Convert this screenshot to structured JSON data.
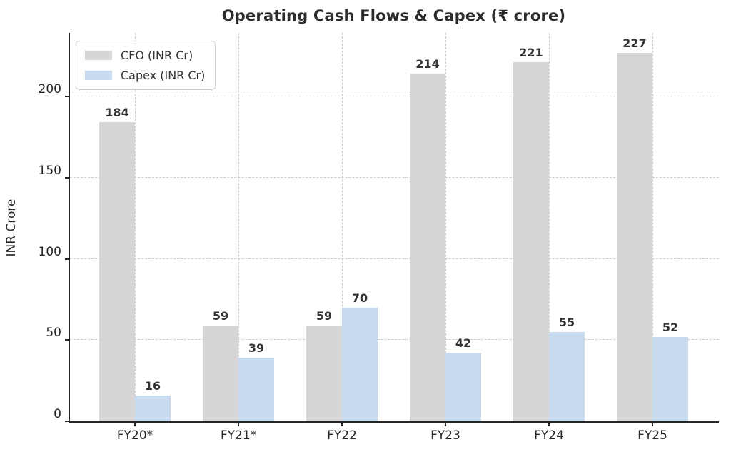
{
  "chart_data": {
    "type": "bar",
    "title": "Operating Cash Flows & Capex (₹ crore)",
    "xlabel": "",
    "ylabel": "INR Crore",
    "categories": [
      "FY20*",
      "FY21*",
      "FY22",
      "FY23",
      "FY24",
      "FY25"
    ],
    "series": [
      {
        "name": "CFO (INR Cr)",
        "color": "#d6d6d6",
        "values": [
          184,
          59,
          59,
          214,
          221,
          227
        ]
      },
      {
        "name": "Capex (INR Cr)",
        "color": "#c7daee",
        "values": [
          16,
          39,
          70,
          42,
          55,
          52
        ]
      }
    ],
    "ylim": [
      0,
      240
    ],
    "yticks": [
      0,
      50,
      100,
      150,
      200
    ],
    "grid": true,
    "grid_style": "dashed",
    "legend_position": "upper-left",
    "colors": {
      "cfo_bar": "#d6d6d6",
      "capex_bar": "#c7daee",
      "grid": "#cccccc",
      "spine": "#262626",
      "text": "#2e2e2e"
    }
  }
}
